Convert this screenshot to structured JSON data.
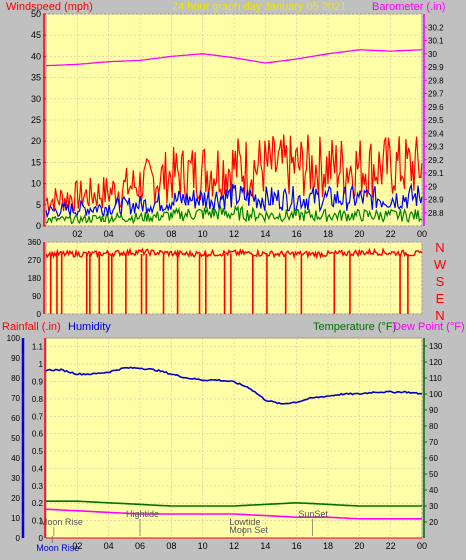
{
  "header": {
    "left_title": "Windspeed (mph)",
    "center_title": "24 hour graph day   January 05 2021",
    "right_title": "Barometer (.in)"
  },
  "x_ticks": [
    "02",
    "04",
    "06",
    "08",
    "10",
    "12",
    "14",
    "16",
    "18",
    "20",
    "22",
    "00"
  ],
  "colors": {
    "plot_bg": "#ffffa8",
    "grid": "#e6c2a0",
    "wind_gust": "#ff0000",
    "wind_avg": "#0000ff",
    "wind_low": "#008000",
    "barometer": "#ff00ff",
    "humidity": "#0000cc",
    "temperature": "#007000",
    "dew_point": "#ff00ff",
    "left_title": "#ff0000",
    "center_title": "#e8e800"
  },
  "chart_data": [
    {
      "type": "line",
      "name": "wind-barometer",
      "x_range": [
        0,
        24
      ],
      "y_left": {
        "label": "Windspeed (mph)",
        "ylim": [
          0,
          50
        ],
        "ticks": [
          0,
          5,
          10,
          15,
          20,
          25,
          30,
          35,
          40,
          45,
          50
        ]
      },
      "y_right": {
        "label": "Barometer (.in)",
        "ylim": [
          28.7,
          30.3
        ],
        "ticks": [
          "28.8",
          "28.9",
          "29",
          "29.1",
          "29.2",
          "29.3",
          "29.4",
          "29.5",
          "29.6",
          "29.7",
          "29.8",
          "29.9",
          "30",
          "30.1",
          "30.2"
        ]
      },
      "series": [
        {
          "name": "gust",
          "axis": "left",
          "x": [
            0,
            2,
            4,
            6,
            8,
            10,
            12,
            14,
            16,
            18,
            20,
            22,
            24
          ],
          "y": [
            6,
            7,
            8,
            10,
            12,
            13,
            14,
            14,
            14,
            14,
            14,
            14,
            14
          ]
        },
        {
          "name": "average",
          "axis": "left",
          "x": [
            0,
            2,
            4,
            6,
            8,
            10,
            12,
            14,
            16,
            18,
            20,
            22,
            24
          ],
          "y": [
            3.5,
            4,
            4.5,
            5,
            6,
            6.5,
            7,
            6.5,
            6.5,
            6.5,
            6.5,
            6.5,
            7
          ]
        },
        {
          "name": "low",
          "axis": "left",
          "x": [
            0,
            2,
            4,
            6,
            8,
            10,
            12,
            14,
            16,
            18,
            20,
            22,
            24
          ],
          "y": [
            1.5,
            1.5,
            2,
            2,
            2.5,
            3,
            3,
            2.5,
            2.5,
            2.5,
            2.5,
            2.5,
            2.5
          ]
        },
        {
          "name": "barometer",
          "axis": "right",
          "x": [
            0,
            2,
            4,
            6,
            8,
            10,
            12,
            14,
            16,
            18,
            20,
            22,
            24
          ],
          "y": [
            29.91,
            29.92,
            29.94,
            29.95,
            29.98,
            30.0,
            29.97,
            29.93,
            29.96,
            30.0,
            30.03,
            30.02,
            30.03
          ]
        }
      ],
      "grid": true
    },
    {
      "type": "line",
      "name": "wind-direction",
      "x_range": [
        0,
        24
      ],
      "y_left": {
        "ylim": [
          0,
          360
        ],
        "ticks": [
          0,
          45,
          90,
          135,
          180,
          225,
          270,
          315,
          360
        ]
      },
      "compass": [
        "N",
        "W",
        "S",
        "E",
        "N"
      ],
      "series": [
        {
          "name": "direction",
          "x": [
            0,
            3,
            6,
            9,
            12,
            15,
            18,
            21,
            24
          ],
          "y": [
            300,
            300,
            310,
            300,
            305,
            300,
            300,
            310,
            300
          ],
          "dropouts_to_zero_at": [
            0.3,
            0.7,
            1.0,
            2.6,
            2.8,
            3.4,
            4.0,
            4.2,
            5.1,
            6.1,
            6.4,
            7.5,
            8.4,
            9.8,
            10.2,
            11.4,
            11.8,
            13.2,
            14.1,
            15.3,
            16.3,
            18.4,
            19.4,
            22.6,
            23.1
          ]
        }
      ],
      "grid": true
    },
    {
      "type": "line",
      "name": "humidity-temperature",
      "x_range": [
        0,
        24
      ],
      "y_left": {
        "label": "Humidity",
        "ylim": [
          0,
          100
        ],
        "ticks": [
          0,
          10,
          20,
          30,
          40,
          50,
          60,
          70,
          80,
          90,
          100
        ]
      },
      "y_left_inner": {
        "label": "Rainfall (.in)",
        "ylim": [
          0,
          1.15
        ],
        "ticks": [
          "0",
          "0.1",
          "0.2",
          "0.3",
          "0.4",
          "0.5",
          "0.6",
          "0.7",
          "0.8",
          "0.9",
          "1",
          "1.1"
        ]
      },
      "y_right": {
        "label": "Temperature (°F)",
        "ylim": [
          10,
          135
        ],
        "ticks": [
          20,
          30,
          40,
          50,
          60,
          70,
          80,
          90,
          100,
          110,
          120,
          130
        ]
      },
      "series": [
        {
          "name": "humidity",
          "axis": "left",
          "x": [
            0,
            1,
            2,
            3,
            4,
            5,
            6,
            7,
            8,
            9,
            10,
            11,
            12,
            13,
            14,
            15,
            16,
            17,
            18,
            19,
            20,
            21,
            22,
            23,
            24
          ],
          "y": [
            84,
            84,
            82,
            82,
            83,
            85,
            85,
            84,
            82,
            80,
            79,
            79,
            78,
            75,
            69,
            67,
            68,
            70,
            71,
            72,
            72,
            73,
            73,
            73,
            72
          ]
        },
        {
          "name": "temperature",
          "axis": "right",
          "x": [
            0,
            2,
            4,
            6,
            8,
            10,
            12,
            14,
            16,
            18,
            20,
            22,
            24
          ],
          "y": [
            33,
            33,
            32,
            31,
            30,
            30,
            30,
            31,
            32,
            31,
            30,
            30,
            30
          ]
        },
        {
          "name": "dew point",
          "axis": "right",
          "x": [
            0,
            2,
            4,
            6,
            8,
            10,
            12,
            14,
            16,
            18,
            20,
            22,
            24
          ],
          "y": [
            28,
            27,
            26,
            25,
            25,
            25,
            25,
            24,
            23,
            23,
            22,
            22,
            22
          ]
        },
        {
          "name": "rainfall",
          "axis": "inner",
          "x": [
            0,
            24
          ],
          "y": [
            0,
            0
          ]
        }
      ],
      "annotations": [
        {
          "text": "Moon Rise",
          "x": 0.5,
          "row": 1
        },
        {
          "text": "Hightide",
          "x": 6.0,
          "row": 0
        },
        {
          "text": "Lowtide",
          "x": 12.6,
          "row": 1
        },
        {
          "text": "Moon Set",
          "x": 12.6,
          "row": 2
        },
        {
          "text": "SunSet",
          "x": 17.0,
          "row": 0
        },
        {
          "text": "Moon Rise",
          "x": 0.4,
          "row": 3
        }
      ],
      "grid": true
    }
  ],
  "lower_titles": {
    "rainfall": "Rainfall (.in)",
    "humidity": "Humidity",
    "temperature": "Temperature (°F)",
    "dew_point": "Dew Point (°F)"
  }
}
